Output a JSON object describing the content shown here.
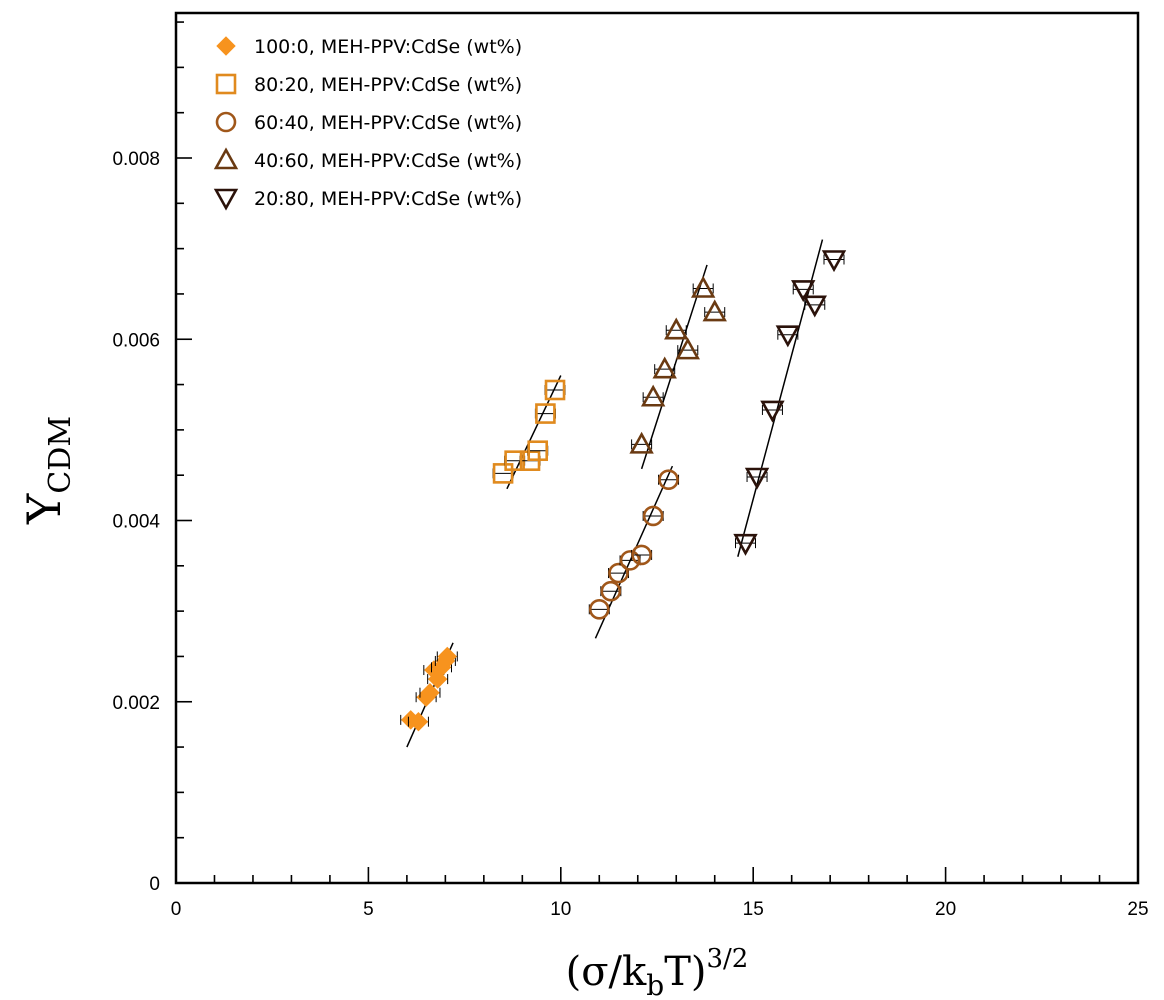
{
  "chart_data": {
    "type": "scatter",
    "title": "",
    "xlabel": "(σ/k_bT)^3/2",
    "xlabel_parts": {
      "open": "(σ/k",
      "sub": "b",
      "mid": "T)",
      "sup": "3/2"
    },
    "ylabel": "Y_CDM",
    "ylabel_parts": {
      "main": "Y",
      "sub": "CDM"
    },
    "xlim": [
      0,
      25
    ],
    "ylim": [
      0,
      0.0096
    ],
    "x_ticks": [
      {
        "value": 0,
        "label": "0"
      },
      {
        "value": 5,
        "label": "5"
      },
      {
        "value": 10,
        "label": "10"
      },
      {
        "value": 15,
        "label": "15"
      },
      {
        "value": 20,
        "label": "20"
      },
      {
        "value": 25,
        "label": "25"
      }
    ],
    "y_ticks": [
      {
        "value": 0,
        "label": "0"
      },
      {
        "value": 0.002,
        "label": "0.002"
      },
      {
        "value": 0.004,
        "label": "0.004"
      },
      {
        "value": 0.006,
        "label": "0.006"
      },
      {
        "value": 0.008,
        "label": "0.008"
      }
    ],
    "legend_position": "top-left",
    "series": [
      {
        "name": "100:0, MEH-PPV:CdSe (wt%)",
        "marker": "diamond-filled",
        "color": "#F7931E",
        "points": [
          [
            6.1,
            0.0018
          ],
          [
            6.3,
            0.00178
          ],
          [
            6.5,
            0.00205
          ],
          [
            6.6,
            0.0021
          ],
          [
            6.7,
            0.00235
          ],
          [
            6.8,
            0.00225
          ],
          [
            6.9,
            0.00238
          ],
          [
            7.0,
            0.00245
          ],
          [
            7.05,
            0.0025
          ]
        ],
        "fit": [
          [
            6.0,
            0.0015
          ],
          [
            7.2,
            0.00265
          ]
        ]
      },
      {
        "name": "80:20, MEH-PPV:CdSe (wt%)",
        "marker": "square-open",
        "color": "#E08A1E",
        "points": [
          [
            8.5,
            0.00452
          ],
          [
            8.8,
            0.00466
          ],
          [
            9.2,
            0.00466
          ],
          [
            9.4,
            0.00477
          ],
          [
            9.6,
            0.00518
          ],
          [
            9.85,
            0.00544
          ]
        ],
        "fit": [
          [
            8.6,
            0.00435
          ],
          [
            10.0,
            0.0056
          ]
        ]
      },
      {
        "name": "60:40, MEH-PPV:CdSe (wt%)",
        "marker": "circle-open",
        "color": "#A0571A",
        "points": [
          [
            11.0,
            0.00302
          ],
          [
            11.3,
            0.00322
          ],
          [
            11.5,
            0.00342
          ],
          [
            11.8,
            0.00356
          ],
          [
            12.1,
            0.00362
          ],
          [
            12.4,
            0.00405
          ],
          [
            12.8,
            0.00445
          ]
        ],
        "fit": [
          [
            10.9,
            0.0027
          ],
          [
            12.9,
            0.0046
          ]
        ]
      },
      {
        "name": "40:60, MEH-PPV:CdSe (wt%)",
        "marker": "triangle-up-open",
        "color": "#6A3A12",
        "points": [
          [
            12.1,
            0.00484
          ],
          [
            12.4,
            0.00536
          ],
          [
            12.7,
            0.00567
          ],
          [
            13.0,
            0.0061
          ],
          [
            13.3,
            0.00588
          ],
          [
            13.7,
            0.00656
          ],
          [
            14.0,
            0.0063
          ]
        ],
        "fit": [
          [
            12.1,
            0.00457
          ],
          [
            13.8,
            0.00682
          ]
        ]
      },
      {
        "name": "20:80, MEH-PPV:CdSe (wt%)",
        "marker": "triangle-down-open",
        "color": "#2B120A",
        "points": [
          [
            14.8,
            0.00375
          ],
          [
            15.1,
            0.00448
          ],
          [
            15.5,
            0.00522
          ],
          [
            15.9,
            0.00605
          ],
          [
            16.3,
            0.00655
          ],
          [
            16.6,
            0.00638
          ],
          [
            17.1,
            0.00688
          ]
        ],
        "fit": [
          [
            14.6,
            0.0036
          ],
          [
            16.8,
            0.0071
          ]
        ]
      }
    ]
  }
}
